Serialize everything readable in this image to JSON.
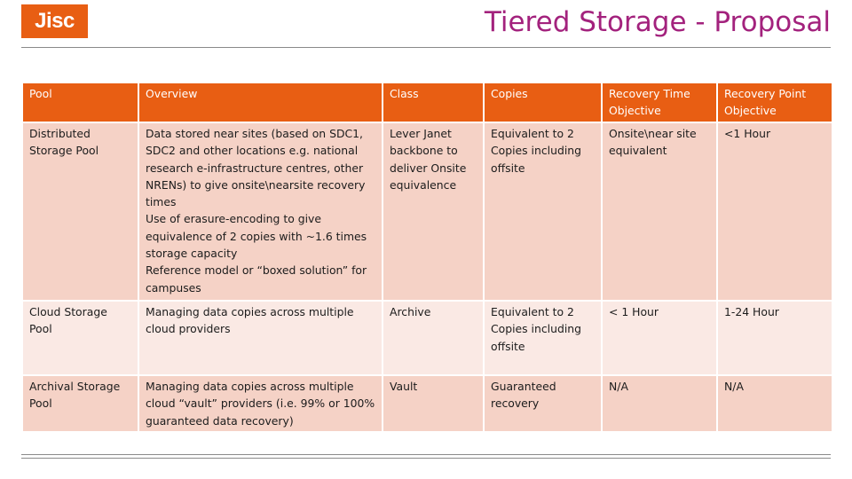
{
  "header": {
    "logo_text": "Jisc",
    "title": "Tiered Storage - Proposal"
  },
  "table": {
    "columns": [
      "Pool",
      "Overview",
      "Class",
      "Copies",
      "Recovery Time Objective",
      "Recovery Point Objective"
    ],
    "rows": [
      {
        "pool": "Distributed Storage Pool",
        "overview": [
          "Data stored near sites (based on SDC1, SDC2 and other locations e.g. national research e-infrastructure centres, other NRENs) to give onsite\\nearsite recovery times",
          "Use of erasure-encoding to give equivalence of 2 copies with ~1.6 times storage capacity",
          "Reference model or “boxed solution” for campuses"
        ],
        "class": "Lever Janet backbone to deliver Onsite equivalence",
        "copies": "Equivalent to 2 Copies including offsite",
        "rto": "Onsite\\near site equivalent",
        "rpo": "<1 Hour"
      },
      {
        "pool": "Cloud Storage Pool",
        "overview": [
          "Managing data copies across multiple cloud providers"
        ],
        "class": "Archive",
        "copies": "Equivalent to 2 Copies including offsite",
        "rto": "< 1 Hour",
        "rpo": "1-24 Hour"
      },
      {
        "pool": "Archival Storage Pool",
        "overview": [
          "Managing data copies across multiple cloud “vault” providers (i.e. 99% or 100% guaranteed data recovery)"
        ],
        "class": "Vault",
        "copies": "Guaranteed recovery",
        "rto": "N/A",
        "rpo": "N/A"
      }
    ]
  },
  "colors": {
    "brand_orange": "#e85e13",
    "title_magenta": "#a3227d",
    "row_band_1": "#f5d2c6",
    "row_band_2": "#fae9e4"
  }
}
